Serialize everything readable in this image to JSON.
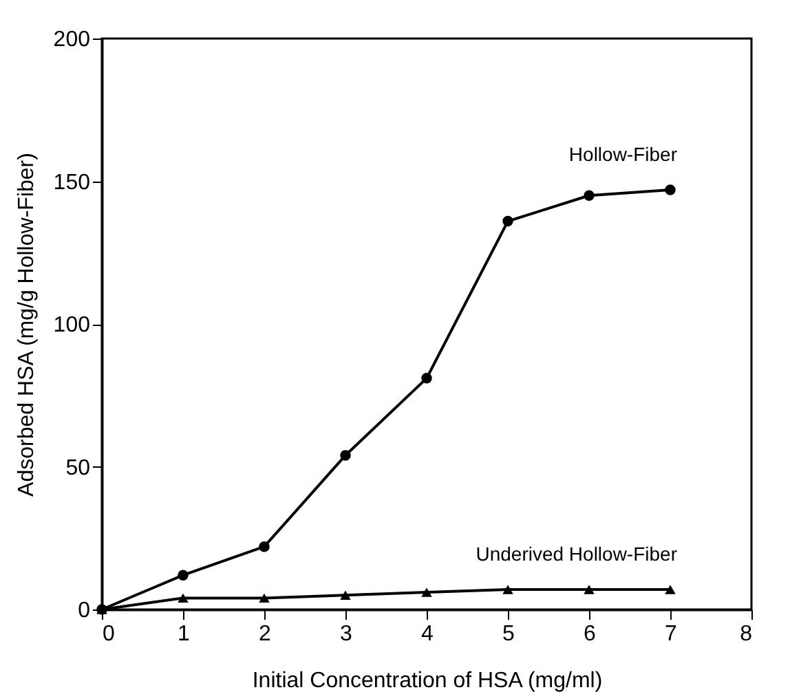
{
  "chart_data": {
    "type": "line",
    "xlabel": "Initial Concentration of HSA (mg/ml)",
    "ylabel": "Adsorbed HSA (mg/g Hollow-Fiber)",
    "x": [
      0,
      1,
      2,
      3,
      4,
      5,
      6,
      7
    ],
    "series": [
      {
        "name": "Hollow-Fiber",
        "color": "#000000",
        "marker": "circle",
        "values": [
          0,
          12,
          22,
          54,
          81,
          136,
          145,
          147
        ]
      },
      {
        "name": "Underived Hollow-Fiber",
        "color": "#000000",
        "marker": "triangle",
        "values": [
          0,
          4,
          4,
          5,
          6,
          7,
          7,
          7
        ]
      }
    ],
    "xlim": [
      0,
      8
    ],
    "xticks": [
      0,
      1,
      2,
      3,
      4,
      5,
      6,
      7,
      8
    ],
    "ylim": [
      0,
      200
    ],
    "yticks": [
      0,
      50,
      100,
      150,
      200
    ],
    "grid": false,
    "legend": false,
    "line_style": "solid"
  }
}
